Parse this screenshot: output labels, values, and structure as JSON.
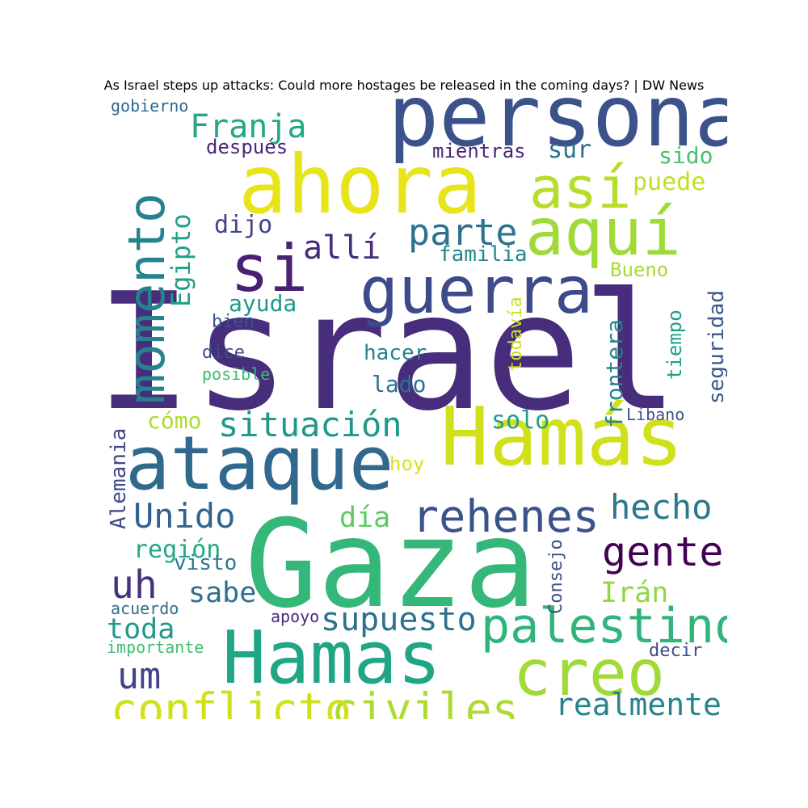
{
  "title": "As Israel steps up attacks: Could more hostages be released in the coming days? | DW News",
  "words": [
    {
      "text": "Israel",
      "color": "#472d7b"
    },
    {
      "text": "Gaza",
      "color": "#35b779"
    },
    {
      "text": "Hamás",
      "color": "#d0e11c"
    },
    {
      "text": "persona",
      "color": "#3b528b"
    },
    {
      "text": "ahora",
      "color": "#e7e419"
    },
    {
      "text": "ataque",
      "color": "#31688e"
    },
    {
      "text": "Hamas",
      "color": "#21a685"
    },
    {
      "text": "guerra",
      "color": "#3e4a89"
    },
    {
      "text": "creo",
      "color": "#a0da39"
    },
    {
      "text": "aquí",
      "color": "#a0da39"
    },
    {
      "text": "así",
      "color": "#b5de2b"
    },
    {
      "text": "momento",
      "color": "#26828e"
    },
    {
      "text": "si",
      "color": "#482173"
    },
    {
      "text": "palestino",
      "color": "#2fb47c"
    },
    {
      "text": "civiles",
      "color": "#addc30"
    },
    {
      "text": "conflicto",
      "color": "#d0e11c"
    },
    {
      "text": "rehenes",
      "color": "#3b528b"
    },
    {
      "text": "gente",
      "color": "#440154"
    },
    {
      "text": "parte",
      "color": "#2c728e"
    },
    {
      "text": "situación",
      "color": "#1f988b"
    },
    {
      "text": "hecho",
      "color": "#2a788e"
    },
    {
      "text": "Unido",
      "color": "#33638d"
    },
    {
      "text": "supuesto",
      "color": "#2c728e"
    },
    {
      "text": "um",
      "color": "#414487"
    },
    {
      "text": "uh",
      "color": "#46327e"
    },
    {
      "text": "allí",
      "color": "#472d7b"
    },
    {
      "text": "Franja",
      "color": "#22a884"
    },
    {
      "text": "Egipto",
      "color": "#1fa187"
    },
    {
      "text": "realmente",
      "color": "#26828e"
    },
    {
      "text": "toda",
      "color": "#1f9a8a"
    },
    {
      "text": "sabe",
      "color": "#2d708e"
    },
    {
      "text": "región",
      "color": "#22a884"
    },
    {
      "text": "día",
      "color": "#5ec962"
    },
    {
      "text": "Irán",
      "color": "#90d743"
    },
    {
      "text": "frontera",
      "color": "#25848e"
    },
    {
      "text": "puede",
      "color": "#c2df23"
    },
    {
      "text": "sido",
      "color": "#4ac16d"
    },
    {
      "text": "sur",
      "color": "#2d708e"
    },
    {
      "text": "dijo",
      "color": "#414487"
    },
    {
      "text": "Alemania",
      "color": "#3e4c8a"
    },
    {
      "text": "solo",
      "color": "#1f9e89"
    },
    {
      "text": "seguridad",
      "color": "#38588c"
    },
    {
      "text": "ayuda",
      "color": "#1f9a8a"
    },
    {
      "text": "cómo",
      "color": "#addc30"
    },
    {
      "text": "familia",
      "color": "#25858e"
    },
    {
      "text": "mientras",
      "color": "#482878"
    },
    {
      "text": "después",
      "color": "#482878"
    },
    {
      "text": "hacer",
      "color": "#26828e"
    },
    {
      "text": "lado",
      "color": "#2c728e"
    },
    {
      "text": "tiempo",
      "color": "#1fa088"
    },
    {
      "text": "Bueno",
      "color": "#a8db34"
    },
    {
      "text": "todavía",
      "color": "#c8e020"
    },
    {
      "text": "hoy",
      "color": "#d8e219"
    },
    {
      "text": "visto",
      "color": "#29798e"
    },
    {
      "text": "apoyo",
      "color": "#472c7a"
    },
    {
      "text": "acuerdo",
      "color": "#2e6f8e"
    },
    {
      "text": "importante",
      "color": "#40bd72"
    },
    {
      "text": "gobierno",
      "color": "#30688e"
    },
    {
      "text": "bien",
      "color": "#3a548c"
    },
    {
      "text": "dice",
      "color": "#3d4d8a"
    },
    {
      "text": "posible",
      "color": "#3bbb75"
    },
    {
      "text": "Consejo",
      "color": "#3d4e8a"
    },
    {
      "text": "Líbano",
      "color": "#3b528b"
    },
    {
      "text": "decir",
      "color": "#3d4d8a"
    }
  ]
}
